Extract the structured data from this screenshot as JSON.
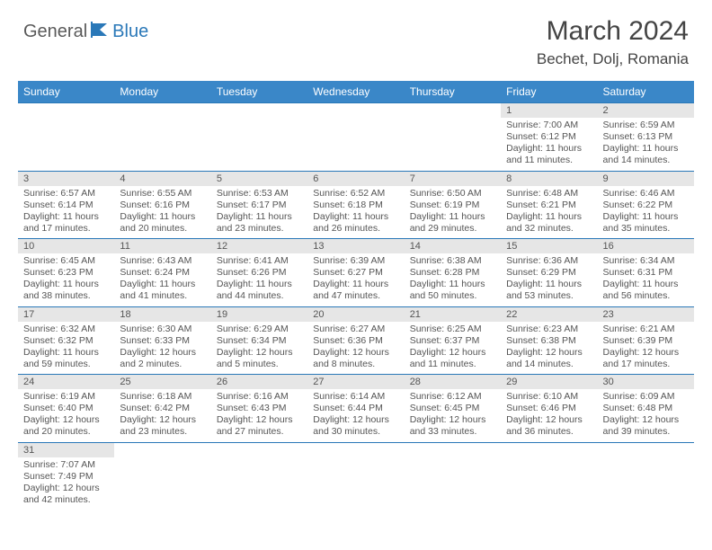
{
  "brand": {
    "part1": "General",
    "part2": "Blue"
  },
  "title": "March 2024",
  "location": "Bechet, Dolj, Romania",
  "colors": {
    "header_bg": "#3a87c8",
    "header_text": "#ffffff",
    "daynum_bg": "#e6e6e6",
    "divider": "#2a78b8",
    "body_text": "#555555",
    "brand_gray": "#5a5a5a",
    "brand_blue": "#2a78b8"
  },
  "weekdays": [
    "Sunday",
    "Monday",
    "Tuesday",
    "Wednesday",
    "Thursday",
    "Friday",
    "Saturday"
  ],
  "weeks": [
    [
      null,
      null,
      null,
      null,
      null,
      {
        "n": "1",
        "sr": "Sunrise: 7:00 AM",
        "ss": "Sunset: 6:12 PM",
        "dl": "Daylight: 11 hours and 11 minutes."
      },
      {
        "n": "2",
        "sr": "Sunrise: 6:59 AM",
        "ss": "Sunset: 6:13 PM",
        "dl": "Daylight: 11 hours and 14 minutes."
      }
    ],
    [
      {
        "n": "3",
        "sr": "Sunrise: 6:57 AM",
        "ss": "Sunset: 6:14 PM",
        "dl": "Daylight: 11 hours and 17 minutes."
      },
      {
        "n": "4",
        "sr": "Sunrise: 6:55 AM",
        "ss": "Sunset: 6:16 PM",
        "dl": "Daylight: 11 hours and 20 minutes."
      },
      {
        "n": "5",
        "sr": "Sunrise: 6:53 AM",
        "ss": "Sunset: 6:17 PM",
        "dl": "Daylight: 11 hours and 23 minutes."
      },
      {
        "n": "6",
        "sr": "Sunrise: 6:52 AM",
        "ss": "Sunset: 6:18 PM",
        "dl": "Daylight: 11 hours and 26 minutes."
      },
      {
        "n": "7",
        "sr": "Sunrise: 6:50 AM",
        "ss": "Sunset: 6:19 PM",
        "dl": "Daylight: 11 hours and 29 minutes."
      },
      {
        "n": "8",
        "sr": "Sunrise: 6:48 AM",
        "ss": "Sunset: 6:21 PM",
        "dl": "Daylight: 11 hours and 32 minutes."
      },
      {
        "n": "9",
        "sr": "Sunrise: 6:46 AM",
        "ss": "Sunset: 6:22 PM",
        "dl": "Daylight: 11 hours and 35 minutes."
      }
    ],
    [
      {
        "n": "10",
        "sr": "Sunrise: 6:45 AM",
        "ss": "Sunset: 6:23 PM",
        "dl": "Daylight: 11 hours and 38 minutes."
      },
      {
        "n": "11",
        "sr": "Sunrise: 6:43 AM",
        "ss": "Sunset: 6:24 PM",
        "dl": "Daylight: 11 hours and 41 minutes."
      },
      {
        "n": "12",
        "sr": "Sunrise: 6:41 AM",
        "ss": "Sunset: 6:26 PM",
        "dl": "Daylight: 11 hours and 44 minutes."
      },
      {
        "n": "13",
        "sr": "Sunrise: 6:39 AM",
        "ss": "Sunset: 6:27 PM",
        "dl": "Daylight: 11 hours and 47 minutes."
      },
      {
        "n": "14",
        "sr": "Sunrise: 6:38 AM",
        "ss": "Sunset: 6:28 PM",
        "dl": "Daylight: 11 hours and 50 minutes."
      },
      {
        "n": "15",
        "sr": "Sunrise: 6:36 AM",
        "ss": "Sunset: 6:29 PM",
        "dl": "Daylight: 11 hours and 53 minutes."
      },
      {
        "n": "16",
        "sr": "Sunrise: 6:34 AM",
        "ss": "Sunset: 6:31 PM",
        "dl": "Daylight: 11 hours and 56 minutes."
      }
    ],
    [
      {
        "n": "17",
        "sr": "Sunrise: 6:32 AM",
        "ss": "Sunset: 6:32 PM",
        "dl": "Daylight: 11 hours and 59 minutes."
      },
      {
        "n": "18",
        "sr": "Sunrise: 6:30 AM",
        "ss": "Sunset: 6:33 PM",
        "dl": "Daylight: 12 hours and 2 minutes."
      },
      {
        "n": "19",
        "sr": "Sunrise: 6:29 AM",
        "ss": "Sunset: 6:34 PM",
        "dl": "Daylight: 12 hours and 5 minutes."
      },
      {
        "n": "20",
        "sr": "Sunrise: 6:27 AM",
        "ss": "Sunset: 6:36 PM",
        "dl": "Daylight: 12 hours and 8 minutes."
      },
      {
        "n": "21",
        "sr": "Sunrise: 6:25 AM",
        "ss": "Sunset: 6:37 PM",
        "dl": "Daylight: 12 hours and 11 minutes."
      },
      {
        "n": "22",
        "sr": "Sunrise: 6:23 AM",
        "ss": "Sunset: 6:38 PM",
        "dl": "Daylight: 12 hours and 14 minutes."
      },
      {
        "n": "23",
        "sr": "Sunrise: 6:21 AM",
        "ss": "Sunset: 6:39 PM",
        "dl": "Daylight: 12 hours and 17 minutes."
      }
    ],
    [
      {
        "n": "24",
        "sr": "Sunrise: 6:19 AM",
        "ss": "Sunset: 6:40 PM",
        "dl": "Daylight: 12 hours and 20 minutes."
      },
      {
        "n": "25",
        "sr": "Sunrise: 6:18 AM",
        "ss": "Sunset: 6:42 PM",
        "dl": "Daylight: 12 hours and 23 minutes."
      },
      {
        "n": "26",
        "sr": "Sunrise: 6:16 AM",
        "ss": "Sunset: 6:43 PM",
        "dl": "Daylight: 12 hours and 27 minutes."
      },
      {
        "n": "27",
        "sr": "Sunrise: 6:14 AM",
        "ss": "Sunset: 6:44 PM",
        "dl": "Daylight: 12 hours and 30 minutes."
      },
      {
        "n": "28",
        "sr": "Sunrise: 6:12 AM",
        "ss": "Sunset: 6:45 PM",
        "dl": "Daylight: 12 hours and 33 minutes."
      },
      {
        "n": "29",
        "sr": "Sunrise: 6:10 AM",
        "ss": "Sunset: 6:46 PM",
        "dl": "Daylight: 12 hours and 36 minutes."
      },
      {
        "n": "30",
        "sr": "Sunrise: 6:09 AM",
        "ss": "Sunset: 6:48 PM",
        "dl": "Daylight: 12 hours and 39 minutes."
      }
    ],
    [
      {
        "n": "31",
        "sr": "Sunrise: 7:07 AM",
        "ss": "Sunset: 7:49 PM",
        "dl": "Daylight: 12 hours and 42 minutes."
      },
      null,
      null,
      null,
      null,
      null,
      null
    ]
  ]
}
